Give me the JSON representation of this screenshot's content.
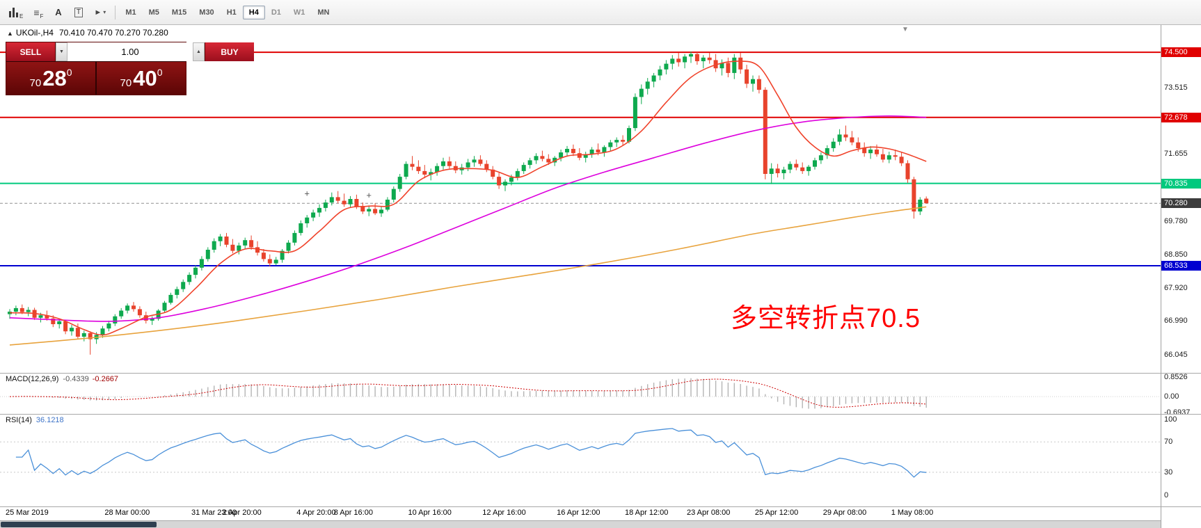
{
  "toolbar": {
    "chart_icon_badge": "E",
    "profile_icon_badge": "F",
    "font_tool_label": "A",
    "text_tool_label": "T",
    "cursor_glyph": "►",
    "caret_glyph": "▾",
    "icons": [
      "candlestick-chart-icon",
      "profiles-grid-icon",
      "font-tool-icon",
      "text-tool-icon",
      "cursor-tool-icon"
    ],
    "timeframes": [
      {
        "label": "M1"
      },
      {
        "label": "M5"
      },
      {
        "label": "M15"
      },
      {
        "label": "M30"
      },
      {
        "label": "H1"
      },
      {
        "label": "H4",
        "active": true
      },
      {
        "label": "D1"
      },
      {
        "label": "W1"
      },
      {
        "label": "MN"
      }
    ]
  },
  "chart_header": {
    "marker": "▲",
    "symbol": "UKOil-,H4",
    "ohlc": "70.410 70.470 70.270 70.280"
  },
  "trade_panel": {
    "sell_label": "SELL",
    "buy_label": "BUY",
    "volume": "1.00",
    "spin_down": "▼",
    "spin_up": "▲",
    "sell_price": {
      "prefix": "70",
      "big": "28",
      "sup": "0"
    },
    "buy_price": {
      "prefix": "70",
      "big": "40",
      "sup": "0"
    }
  },
  "chart_data": {
    "type": "candlestick",
    "symbol": "UKOil-",
    "timeframe": "H4",
    "price_range": {
      "max": 75.26,
      "min": 65.54
    },
    "macd_range": {
      "max": 1.04,
      "min": -0.76
    },
    "rsi_range": {
      "max": 107,
      "min": -15
    },
    "colors": {
      "up": "#0EA94E",
      "down": "#E8432C"
    },
    "annotation": {
      "text": "多空转折点70.5",
      "color": "#FF0000"
    },
    "levels": [
      {
        "price": 74.5,
        "color": "#E00000",
        "width": 2
      },
      {
        "price": 72.678,
        "color": "#E00000",
        "width": 2
      },
      {
        "price": 70.835,
        "color": "#00C97E",
        "width": 2
      },
      {
        "price": 70.28,
        "color": "#909090",
        "width": 1,
        "dashed": true,
        "label_bg": "#3C3C3C"
      },
      {
        "price": 68.533,
        "color": "#0000D0",
        "width": 2
      }
    ],
    "price_ticks": [
      73.515,
      71.655,
      69.78,
      68.85,
      67.92,
      66.99,
      66.045
    ],
    "time_labels": [
      [
        0,
        "25 Mar 2019"
      ],
      [
        16,
        "28 Mar 00:00"
      ],
      [
        30,
        "31 Mar 23:00"
      ],
      [
        35,
        "2 Apr 20:00"
      ],
      [
        47,
        "4 Apr 20:00"
      ],
      [
        53,
        "8 Apr 16:00"
      ],
      [
        65,
        "10 Apr 16:00"
      ],
      [
        77,
        "12 Apr 16:00"
      ],
      [
        89,
        "16 Apr 12:00"
      ],
      [
        100,
        "18 Apr 12:00"
      ],
      [
        110,
        "23 Apr 08:00"
      ],
      [
        121,
        "25 Apr 12:00"
      ],
      [
        132,
        "29 Apr 08:00"
      ],
      [
        143,
        "1 May 08:00"
      ]
    ],
    "markers": [
      [
        48,
        70.55
      ],
      [
        58,
        70.5
      ]
    ],
    "ma_fast": {
      "color": "#F0432B",
      "points": [
        [
          0,
          67.22
        ],
        [
          4,
          67.2
        ],
        [
          8,
          67.05
        ],
        [
          12,
          66.75
        ],
        [
          15,
          66.6
        ],
        [
          18,
          66.78
        ],
        [
          22,
          67.1
        ],
        [
          26,
          67.3
        ],
        [
          30,
          67.9
        ],
        [
          34,
          68.6
        ],
        [
          38,
          69.0
        ],
        [
          42,
          68.95
        ],
        [
          46,
          68.95
        ],
        [
          50,
          69.5
        ],
        [
          54,
          70.1
        ],
        [
          58,
          70.2
        ],
        [
          62,
          70.25
        ],
        [
          66,
          70.9
        ],
        [
          70,
          71.2
        ],
        [
          74,
          71.25
        ],
        [
          78,
          71.2
        ],
        [
          82,
          71.0
        ],
        [
          86,
          71.3
        ],
        [
          90,
          71.6
        ],
        [
          94,
          71.65
        ],
        [
          98,
          71.8
        ],
        [
          102,
          72.3
        ],
        [
          106,
          73.1
        ],
        [
          110,
          73.8
        ],
        [
          114,
          74.15
        ],
        [
          118,
          74.25
        ],
        [
          121,
          74.1
        ],
        [
          124,
          73.3
        ],
        [
          127,
          72.4
        ],
        [
          130,
          71.85
        ],
        [
          133,
          71.6
        ],
        [
          136,
          71.75
        ],
        [
          139,
          71.85
        ],
        [
          142,
          71.8
        ],
        [
          145,
          71.65
        ],
        [
          148,
          71.45
        ]
      ]
    },
    "ma_mid": {
      "color": "#DD00DD",
      "points": [
        [
          0,
          67.08
        ],
        [
          8,
          67.02
        ],
        [
          16,
          66.98
        ],
        [
          24,
          67.08
        ],
        [
          32,
          67.35
        ],
        [
          40,
          67.7
        ],
        [
          48,
          68.1
        ],
        [
          56,
          68.55
        ],
        [
          64,
          69.05
        ],
        [
          72,
          69.6
        ],
        [
          80,
          70.15
        ],
        [
          88,
          70.7
        ],
        [
          96,
          71.15
        ],
        [
          104,
          71.55
        ],
        [
          112,
          71.95
        ],
        [
          120,
          72.3
        ],
        [
          128,
          72.55
        ],
        [
          136,
          72.68
        ],
        [
          142,
          72.72
        ],
        [
          148,
          72.68
        ]
      ]
    },
    "ma_slow": {
      "color": "#E8A33D",
      "points": [
        [
          0,
          66.32
        ],
        [
          12,
          66.5
        ],
        [
          24,
          66.72
        ],
        [
          36,
          66.98
        ],
        [
          48,
          67.28
        ],
        [
          60,
          67.6
        ],
        [
          72,
          67.95
        ],
        [
          84,
          68.28
        ],
        [
          96,
          68.62
        ],
        [
          108,
          69.0
        ],
        [
          120,
          69.42
        ],
        [
          128,
          69.65
        ],
        [
          136,
          69.88
        ],
        [
          142,
          70.04
        ],
        [
          148,
          70.18
        ]
      ]
    },
    "macd": {
      "name": "MACD(12,26,9)",
      "value_main": "-0.4339",
      "value_signal": "-0.2667",
      "hist_color": "#b4b4b4",
      "signal_color": "#CC0000",
      "axis": [
        {
          "t": "0.8526",
          "v": 0.8526
        },
        {
          "t": "0.00",
          "v": 0
        },
        {
          "t": "-0.6937",
          "v": -0.6937
        }
      ]
    },
    "rsi": {
      "name": "RSI(14)",
      "value": "36.1218",
      "color": "#4A90D9",
      "levels": [
        70,
        30
      ],
      "axis": [
        {
          "t": "100",
          "v": 100
        },
        {
          "t": "70",
          "v": 70
        },
        {
          "t": "30",
          "v": 30
        },
        {
          "t": "0",
          "v": 0
        }
      ]
    },
    "candles": [
      [
        67.18,
        67.32,
        67.05,
        67.25
      ],
      [
        67.25,
        67.42,
        67.15,
        67.35
      ],
      [
        67.35,
        67.45,
        67.18,
        67.24
      ],
      [
        67.24,
        67.38,
        67.12,
        67.3
      ],
      [
        67.3,
        67.36,
        67.02,
        67.08
      ],
      [
        67.08,
        67.22,
        66.95,
        67.15
      ],
      [
        67.15,
        67.28,
        67.0,
        67.06
      ],
      [
        67.06,
        67.15,
        66.82,
        66.9
      ],
      [
        66.9,
        67.05,
        66.78,
        66.98
      ],
      [
        66.98,
        67.02,
        66.62,
        66.7
      ],
      [
        66.7,
        66.88,
        66.58,
        66.8
      ],
      [
        66.8,
        66.92,
        66.48,
        66.55
      ],
      [
        66.55,
        66.72,
        66.42,
        66.65
      ],
      [
        66.65,
        66.7,
        66.05,
        66.48
      ],
      [
        66.48,
        66.68,
        66.35,
        66.6
      ],
      [
        66.6,
        66.85,
        66.52,
        66.78
      ],
      [
        66.78,
        67.0,
        66.7,
        66.92
      ],
      [
        66.92,
        67.18,
        66.85,
        67.12
      ],
      [
        67.12,
        67.35,
        67.05,
        67.28
      ],
      [
        67.28,
        67.48,
        67.2,
        67.42
      ],
      [
        67.42,
        67.52,
        67.25,
        67.32
      ],
      [
        67.32,
        67.4,
        67.08,
        67.15
      ],
      [
        67.15,
        67.25,
        66.92,
        67.0
      ],
      [
        67.0,
        67.12,
        66.88,
        67.05
      ],
      [
        67.05,
        67.32,
        67.0,
        67.28
      ],
      [
        67.28,
        67.55,
        67.22,
        67.5
      ],
      [
        67.5,
        67.78,
        67.45,
        67.72
      ],
      [
        67.72,
        67.95,
        67.62,
        67.88
      ],
      [
        67.88,
        68.15,
        67.8,
        68.08
      ],
      [
        68.08,
        68.35,
        68.0,
        68.28
      ],
      [
        68.28,
        68.55,
        68.18,
        68.48
      ],
      [
        68.48,
        68.8,
        68.4,
        68.72
      ],
      [
        68.72,
        69.05,
        68.65,
        68.98
      ],
      [
        68.98,
        69.3,
        68.9,
        69.22
      ],
      [
        69.22,
        69.42,
        69.08,
        69.35
      ],
      [
        69.35,
        69.45,
        69.05,
        69.12
      ],
      [
        69.12,
        69.28,
        68.88,
        68.95
      ],
      [
        68.95,
        69.18,
        68.85,
        69.1
      ],
      [
        69.1,
        69.32,
        69.0,
        69.25
      ],
      [
        69.25,
        69.38,
        68.98,
        69.05
      ],
      [
        69.05,
        69.22,
        68.82,
        68.9
      ],
      [
        68.9,
        69.0,
        68.65,
        68.72
      ],
      [
        68.72,
        68.85,
        68.52,
        68.6
      ],
      [
        68.6,
        68.78,
        68.55,
        68.7
      ],
      [
        68.7,
        69.0,
        68.62,
        68.95
      ],
      [
        68.95,
        69.25,
        68.88,
        69.18
      ],
      [
        69.18,
        69.52,
        69.1,
        69.45
      ],
      [
        69.45,
        69.8,
        69.38,
        69.72
      ],
      [
        69.72,
        69.95,
        69.6,
        69.88
      ],
      [
        69.88,
        70.1,
        69.78,
        70.02
      ],
      [
        70.02,
        70.25,
        69.9,
        70.15
      ],
      [
        70.15,
        70.38,
        70.05,
        70.3
      ],
      [
        70.3,
        70.58,
        70.22,
        70.45
      ],
      [
        70.45,
        70.62,
        70.28,
        70.35
      ],
      [
        70.35,
        70.55,
        70.18,
        70.25
      ],
      [
        70.25,
        70.48,
        70.15,
        70.4
      ],
      [
        70.4,
        70.52,
        70.12,
        70.18
      ],
      [
        70.18,
        70.3,
        69.98,
        70.05
      ],
      [
        70.05,
        70.22,
        69.92,
        70.12
      ],
      [
        70.12,
        70.28,
        69.95,
        70.0
      ],
      [
        70.0,
        70.18,
        69.9,
        70.1
      ],
      [
        70.1,
        70.45,
        70.05,
        70.38
      ],
      [
        70.38,
        70.75,
        70.3,
        70.68
      ],
      [
        70.68,
        71.1,
        70.6,
        71.02
      ],
      [
        71.02,
        71.45,
        70.95,
        71.38
      ],
      [
        71.38,
        71.6,
        71.2,
        71.3
      ],
      [
        71.3,
        71.48,
        71.1,
        71.18
      ],
      [
        71.18,
        71.35,
        70.98,
        71.08
      ],
      [
        71.08,
        71.25,
        70.92,
        71.15
      ],
      [
        71.15,
        71.4,
        71.05,
        71.32
      ],
      [
        71.32,
        71.55,
        71.22,
        71.45
      ],
      [
        71.45,
        71.58,
        71.25,
        71.32
      ],
      [
        71.32,
        71.45,
        71.12,
        71.2
      ],
      [
        71.2,
        71.38,
        71.08,
        71.28
      ],
      [
        71.28,
        71.52,
        71.18,
        71.42
      ],
      [
        71.42,
        71.6,
        71.3,
        71.5
      ],
      [
        71.5,
        71.62,
        71.32,
        71.38
      ],
      [
        71.38,
        71.48,
        71.15,
        71.22
      ],
      [
        71.22,
        71.32,
        70.95,
        71.02
      ],
      [
        71.02,
        71.15,
        70.68,
        70.78
      ],
      [
        70.78,
        70.95,
        70.62,
        70.88
      ],
      [
        70.88,
        71.08,
        70.78,
        71.0
      ],
      [
        71.0,
        71.25,
        70.92,
        71.18
      ],
      [
        71.18,
        71.42,
        71.1,
        71.35
      ],
      [
        71.35,
        71.55,
        71.25,
        71.48
      ],
      [
        71.48,
        71.68,
        71.38,
        71.6
      ],
      [
        71.6,
        71.75,
        71.45,
        71.52
      ],
      [
        71.52,
        71.65,
        71.35,
        71.42
      ],
      [
        71.42,
        71.6,
        71.32,
        71.55
      ],
      [
        71.55,
        71.78,
        71.45,
        71.7
      ],
      [
        71.7,
        71.88,
        71.58,
        71.8
      ],
      [
        71.8,
        71.92,
        71.6,
        71.68
      ],
      [
        71.68,
        71.82,
        71.48,
        71.55
      ],
      [
        71.55,
        71.72,
        71.42,
        71.65
      ],
      [
        71.65,
        71.85,
        71.55,
        71.78
      ],
      [
        71.78,
        71.95,
        71.62,
        71.7
      ],
      [
        71.7,
        71.9,
        71.58,
        71.85
      ],
      [
        71.85,
        72.05,
        71.75,
        71.98
      ],
      [
        71.98,
        72.12,
        71.85,
        72.05
      ],
      [
        72.05,
        72.18,
        71.9,
        72.0
      ],
      [
        72.0,
        72.45,
        71.95,
        72.38
      ],
      [
        72.38,
        73.35,
        72.3,
        73.25
      ],
      [
        73.25,
        73.6,
        73.05,
        73.48
      ],
      [
        73.48,
        73.78,
        73.32,
        73.68
      ],
      [
        73.68,
        73.92,
        73.52,
        73.85
      ],
      [
        73.85,
        74.12,
        73.72,
        74.02
      ],
      [
        74.02,
        74.28,
        73.88,
        74.18
      ],
      [
        74.18,
        74.42,
        74.02,
        74.32
      ],
      [
        74.32,
        74.48,
        74.1,
        74.22
      ],
      [
        74.22,
        74.45,
        74.05,
        74.38
      ],
      [
        74.38,
        74.52,
        74.2,
        74.45
      ],
      [
        74.45,
        74.5,
        74.15,
        74.25
      ],
      [
        74.25,
        74.42,
        74.05,
        74.35
      ],
      [
        74.35,
        74.48,
        74.18,
        74.28
      ],
      [
        74.28,
        74.45,
        73.95,
        74.05
      ],
      [
        74.05,
        74.3,
        73.85,
        74.2
      ],
      [
        74.2,
        74.35,
        73.8,
        73.92
      ],
      [
        73.92,
        74.45,
        73.75,
        74.35
      ],
      [
        74.35,
        74.48,
        73.9,
        74.02
      ],
      [
        74.02,
        74.15,
        73.5,
        73.62
      ],
      [
        73.62,
        73.85,
        73.4,
        73.75
      ],
      [
        73.75,
        73.85,
        73.35,
        73.45
      ],
      [
        73.45,
        73.52,
        70.95,
        71.1
      ],
      [
        71.1,
        71.4,
        70.82,
        71.25
      ],
      [
        71.25,
        71.38,
        71.0,
        71.12
      ],
      [
        71.12,
        71.3,
        70.95,
        71.22
      ],
      [
        71.22,
        71.45,
        71.12,
        71.38
      ],
      [
        71.38,
        71.5,
        71.2,
        71.28
      ],
      [
        71.28,
        71.42,
        71.1,
        71.18
      ],
      [
        71.18,
        71.35,
        71.05,
        71.3
      ],
      [
        71.3,
        71.55,
        71.22,
        71.48
      ],
      [
        71.48,
        71.7,
        71.38,
        71.62
      ],
      [
        71.62,
        71.9,
        71.52,
        71.82
      ],
      [
        71.82,
        72.1,
        71.72,
        72.0
      ],
      [
        72.0,
        72.35,
        71.9,
        72.2
      ],
      [
        72.2,
        72.45,
        72.02,
        72.12
      ],
      [
        72.12,
        72.3,
        71.9,
        71.98
      ],
      [
        71.98,
        72.12,
        71.72,
        71.82
      ],
      [
        71.82,
        71.98,
        71.58,
        71.68
      ],
      [
        71.68,
        71.88,
        71.52,
        71.78
      ],
      [
        71.78,
        71.92,
        71.58,
        71.65
      ],
      [
        71.65,
        71.8,
        71.42,
        71.5
      ],
      [
        71.5,
        71.72,
        71.4,
        71.62
      ],
      [
        71.62,
        71.78,
        71.48,
        71.58
      ],
      [
        71.58,
        71.7,
        71.32,
        71.4
      ],
      [
        71.4,
        71.48,
        70.85,
        70.95
      ],
      [
        70.95,
        71.02,
        69.85,
        70.05
      ],
      [
        70.05,
        70.45,
        69.95,
        70.38
      ],
      [
        70.41,
        70.47,
        70.27,
        70.28
      ]
    ]
  }
}
